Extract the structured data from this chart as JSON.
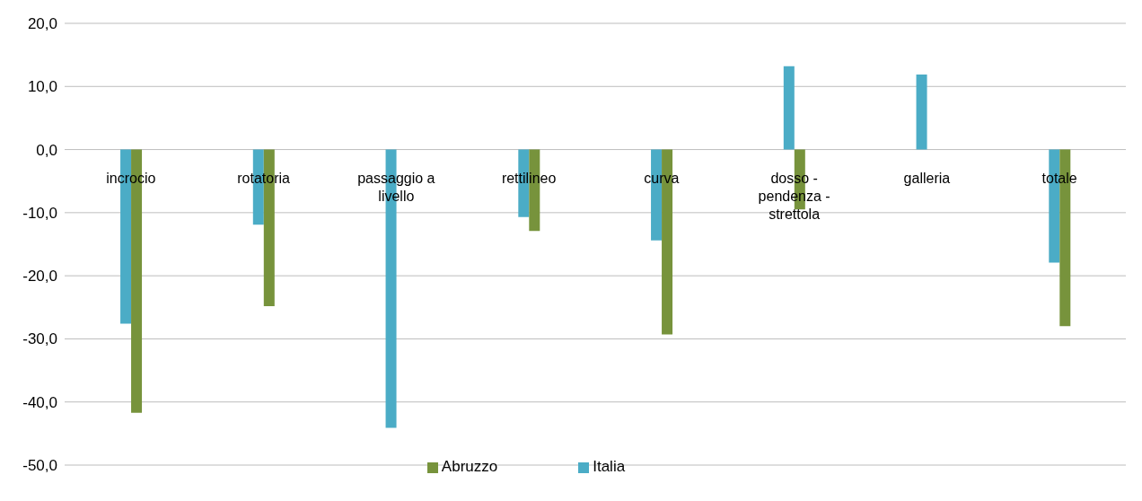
{
  "chart_data": {
    "type": "bar",
    "categories": [
      "incrocio",
      "rotatoria",
      "passaggio a livello",
      "rettilineo",
      "curva",
      "dosso - pendenza - strettola",
      "galleria",
      "totale"
    ],
    "series": [
      {
        "name": "Italia",
        "color": "#4bacc6",
        "values": [
          -27.6,
          -11.9,
          -44.1,
          -10.7,
          -14.4,
          13.2,
          11.9,
          -17.9
        ]
      },
      {
        "name": "Abruzzo",
        "color": "#77933c",
        "values": [
          -41.7,
          -24.8,
          null,
          -12.9,
          -29.3,
          -9.5,
          null,
          -28.0
        ]
      }
    ],
    "ylim": [
      -50,
      20
    ],
    "yticks": [
      {
        "value": -50,
        "label": "-50,0"
      },
      {
        "value": -40,
        "label": "-40,0"
      },
      {
        "value": -30,
        "label": "-30,0"
      },
      {
        "value": -20,
        "label": "-20,0"
      },
      {
        "value": -10,
        "label": "-10,0"
      },
      {
        "value": 0,
        "label": "0,0"
      },
      {
        "value": 10,
        "label": "10,0"
      },
      {
        "value": 20,
        "label": "20,0"
      }
    ],
    "grid": "y",
    "legend": "bottom"
  }
}
